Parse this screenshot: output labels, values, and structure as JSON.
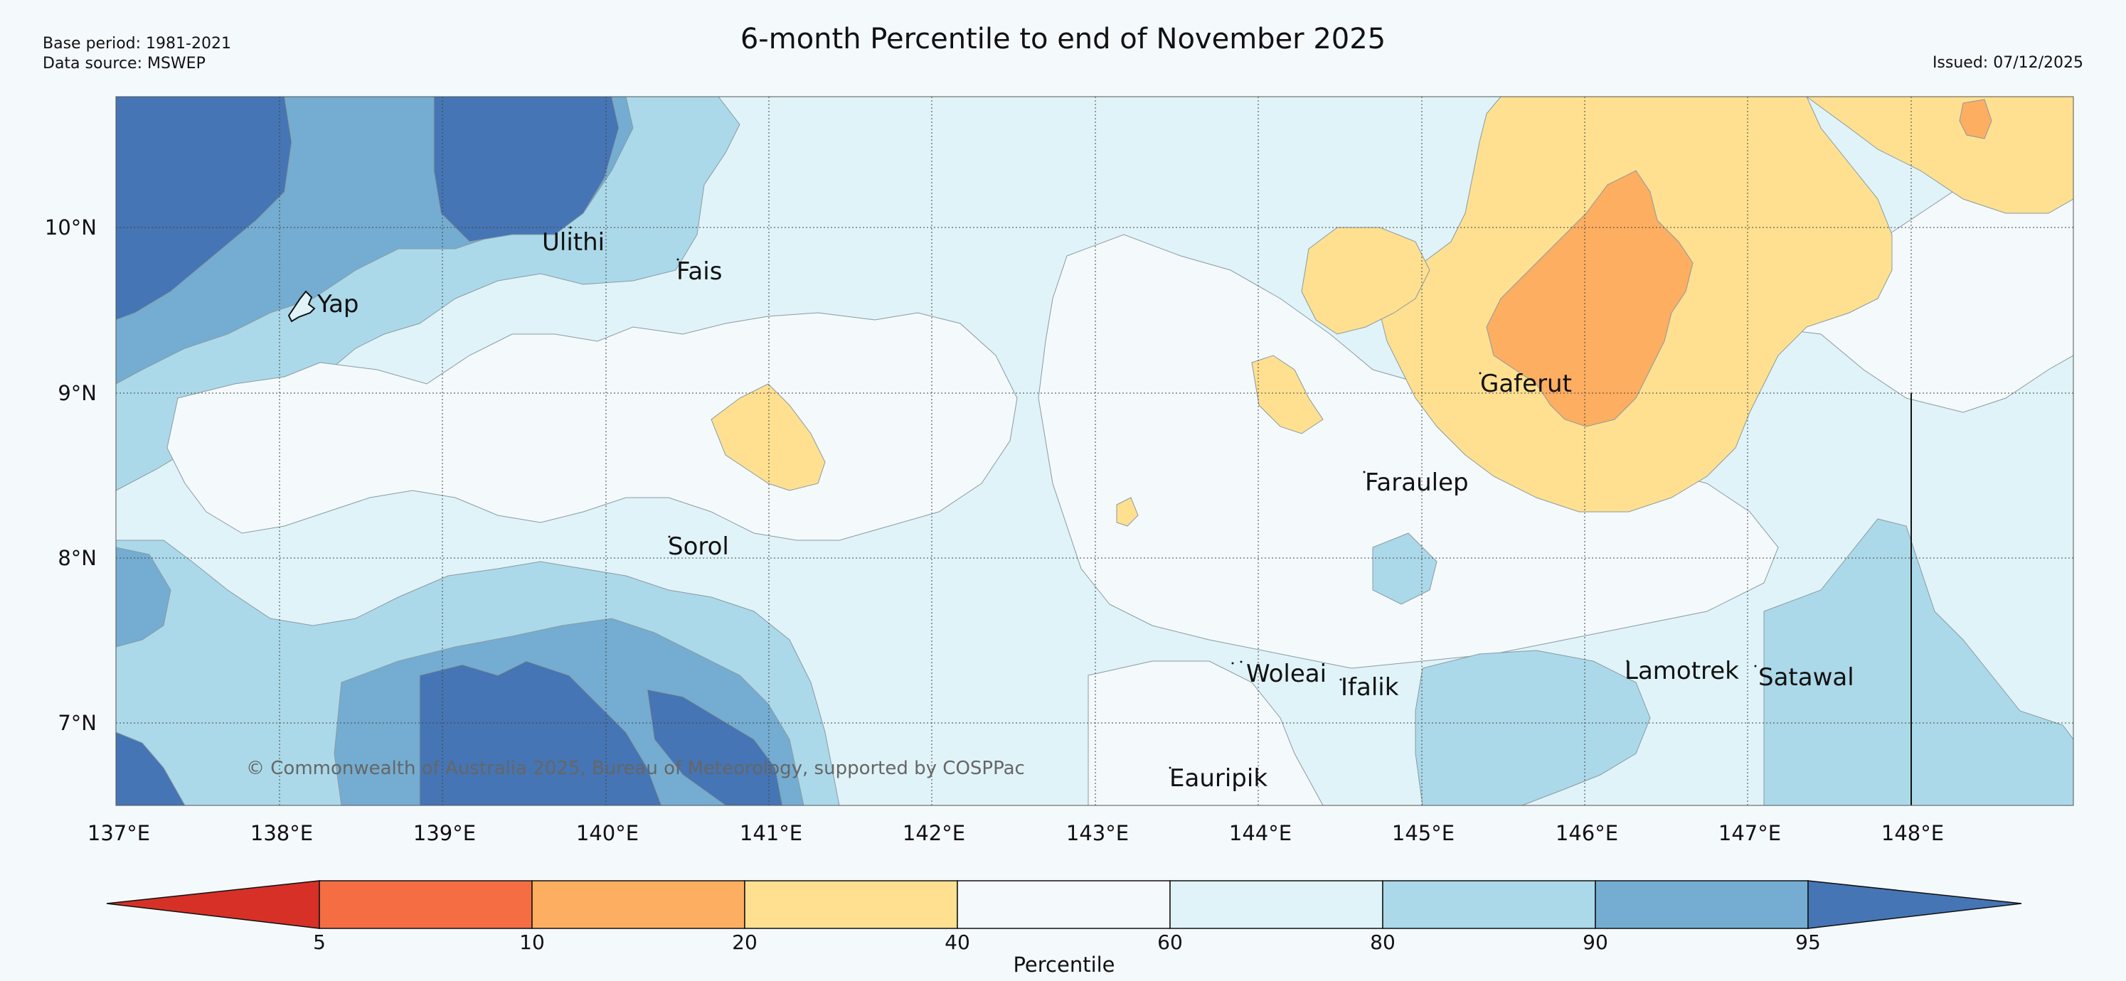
{
  "header": {
    "base_period": "Base period: 1981-2021",
    "data_source": "Data source: MSWEP",
    "title": "6-month Percentile to end of November 2025",
    "issued": "Issued: 07/12/2025"
  },
  "map": {
    "lon_range": [
      137,
      149
    ],
    "lat_range": [
      6.5,
      10.8
    ],
    "lat_ticks": [
      {
        "value": 10,
        "label": "10°N"
      },
      {
        "value": 9,
        "label": "9°N"
      },
      {
        "value": 8,
        "label": "8°N"
      },
      {
        "value": 7,
        "label": "7°N"
      }
    ],
    "lon_ticks": [
      {
        "value": 137,
        "label": "137°E"
      },
      {
        "value": 138,
        "label": "138°E"
      },
      {
        "value": 139,
        "label": "139°E"
      },
      {
        "value": 140,
        "label": "140°E"
      },
      {
        "value": 141,
        "label": "141°E"
      },
      {
        "value": 142,
        "label": "142°E"
      },
      {
        "value": 143,
        "label": "143°E"
      },
      {
        "value": 144,
        "label": "144°E"
      },
      {
        "value": 145,
        "label": "145°E"
      },
      {
        "value": 146,
        "label": "146°E"
      },
      {
        "value": 147,
        "label": "147°E"
      },
      {
        "value": 148,
        "label": "148°E"
      }
    ],
    "gridlines": "dotted",
    "places": [
      {
        "name": "Ulithi",
        "lon": 139.8,
        "lat": 9.9
      },
      {
        "name": "Fais",
        "lon": 140.5,
        "lat": 9.75
      },
      {
        "name": "Yap",
        "lon": 138.15,
        "lat": 9.55
      },
      {
        "name": "Gaferut",
        "lon": 145.4,
        "lat": 9.05
      },
      {
        "name": "Faraulep",
        "lon": 144.7,
        "lat": 8.45
      },
      {
        "name": "Sorol",
        "lon": 140.4,
        "lat": 8.05
      },
      {
        "name": "Woleai",
        "lon": 143.9,
        "lat": 7.35
      },
      {
        "name": "Ifalik",
        "lon": 144.45,
        "lat": 7.2
      },
      {
        "name": "Lamotrek",
        "lon": 146.25,
        "lat": 7.35
      },
      {
        "name": "Satawal",
        "lon": 147.05,
        "lat": 7.35
      },
      {
        "name": "Eauripik",
        "lon": 143.45,
        "lat": 6.7
      }
    ],
    "copyright": "© Commonwealth of Australia 2025, Bureau of Meteorology, supported by COSPPac"
  },
  "legend": {
    "label": "Percentile",
    "ticks": [
      "5",
      "10",
      "20",
      "40",
      "60",
      "80",
      "90",
      "95"
    ],
    "bins": [
      {
        "range": "<5",
        "color": "#d73027"
      },
      {
        "range": "5-10",
        "color": "#f46d43"
      },
      {
        "range": "10-20",
        "color": "#fdae61"
      },
      {
        "range": "20-40",
        "color": "#fee090"
      },
      {
        "range": "40-60",
        "color": "#f4f9fc"
      },
      {
        "range": "60-80",
        "color": "#e0f3f8"
      },
      {
        "range": "80-90",
        "color": "#abd9e9"
      },
      {
        "range": "90-95",
        "color": "#74add1"
      },
      {
        "range": ">95",
        "color": "#4575b4"
      }
    ]
  }
}
